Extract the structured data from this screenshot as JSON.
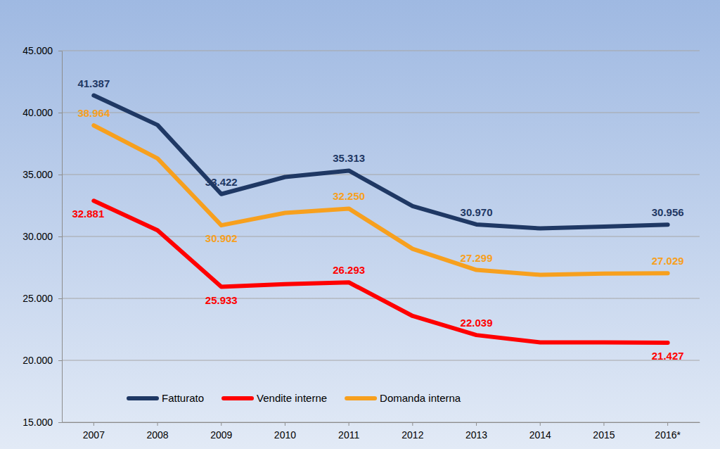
{
  "chart_data": {
    "type": "line",
    "categories": [
      "2007",
      "2008",
      "2009",
      "2010",
      "2011",
      "2012",
      "2013",
      "2014",
      "2015",
      "2016*"
    ],
    "series": [
      {
        "name": "Fatturato",
        "color": "#1f3864",
        "values": [
          41387,
          39000,
          33422,
          34800,
          35313,
          32450,
          30970,
          30650,
          30800,
          30956
        ],
        "value_labels": [
          "41.387",
          null,
          "33.422",
          null,
          "35.313",
          null,
          "30.970",
          null,
          null,
          "30.956"
        ]
      },
      {
        "name": "Vendite interne",
        "color": "#ff0000",
        "values": [
          32881,
          30500,
          25933,
          26150,
          26293,
          23580,
          22039,
          21450,
          21450,
          21427
        ],
        "value_labels": [
          "32.881",
          null,
          "25.933",
          null,
          "26.293",
          null,
          "22.039",
          null,
          null,
          "21.427"
        ]
      },
      {
        "name": "Domanda interna",
        "color": "#f7a01e",
        "values": [
          38964,
          36300,
          30902,
          31900,
          32250,
          29000,
          27299,
          26900,
          27000,
          27029
        ],
        "value_labels": [
          "38.964",
          null,
          "30.902",
          null,
          "32.250",
          null,
          "27.299",
          null,
          null,
          "27.029"
        ]
      }
    ],
    "ylim": [
      15000,
      45000
    ],
    "yticks": [
      {
        "value": 15000,
        "label": "15.000"
      },
      {
        "value": 20000,
        "label": "20.000"
      },
      {
        "value": 25000,
        "label": "25.000"
      },
      {
        "value": 30000,
        "label": "30.000"
      },
      {
        "value": 35000,
        "label": "35.000"
      },
      {
        "value": 40000,
        "label": "40.000"
      },
      {
        "value": 45000,
        "label": "45.000"
      }
    ],
    "grid": true,
    "legend": "bottom",
    "data_labels": true
  }
}
